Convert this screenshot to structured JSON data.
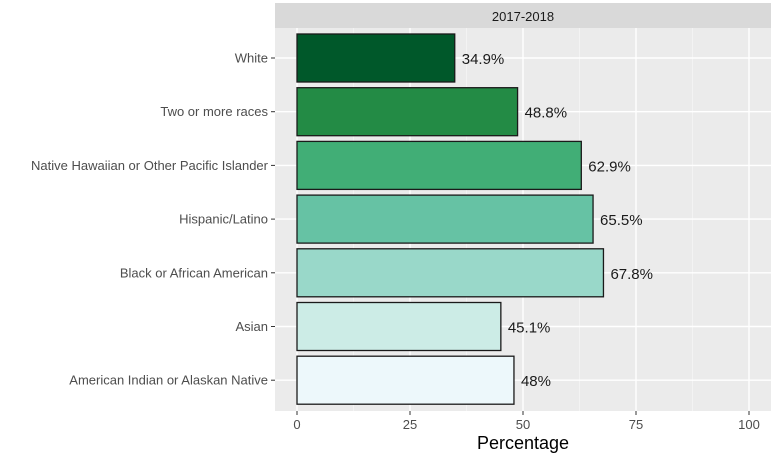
{
  "chart_data": {
    "type": "bar",
    "orientation": "horizontal",
    "facet_label": "2017-2018",
    "categories": [
      "White",
      "Two or more races",
      "Native Hawaiian or Other Pacific Islander",
      "Hispanic/Latino",
      "Black or African American",
      "Asian",
      "American Indian or Alaskan Native"
    ],
    "values": [
      34.9,
      48.8,
      62.9,
      65.5,
      67.8,
      45.1,
      48
    ],
    "data_labels": [
      "34.9%",
      "48.8%",
      "62.9%",
      "65.5%",
      "67.8%",
      "45.1%",
      "48%"
    ],
    "colors": [
      "#00582a",
      "#238b45",
      "#41ae76",
      "#66c2a4",
      "#99d8c9",
      "#ccece6",
      "#edf8fb"
    ],
    "xlabel": "Percentage",
    "ylabel": "",
    "xlim": [
      0,
      100
    ],
    "xticks": [
      0,
      25,
      50,
      75,
      100
    ],
    "grid": true,
    "legend": "none",
    "panel_background": "#ebebeb",
    "strip_background": "#d9d9d9"
  }
}
